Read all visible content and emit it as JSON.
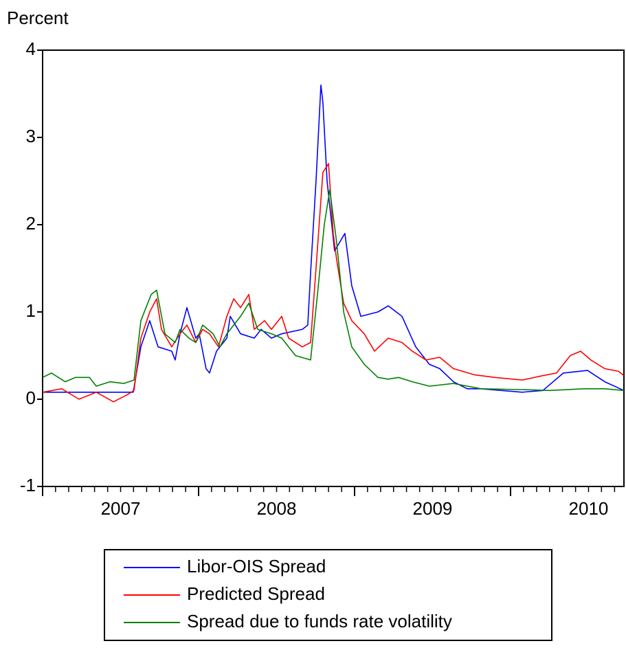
{
  "chart_data": {
    "type": "line",
    "ylabel": "Percent",
    "xlim": [
      2007,
      2010.727
    ],
    "ylim": [
      -1,
      4
    ],
    "yticks": [
      -1,
      0,
      1,
      2,
      3,
      4
    ],
    "xticks": [
      {
        "value": 2007.5,
        "label": "2007"
      },
      {
        "value": 2008.5,
        "label": "2008"
      },
      {
        "value": 2009.5,
        "label": "2009"
      },
      {
        "value": 2010.5,
        "label": "2010"
      }
    ],
    "x_minor_ticks": [
      2007,
      2007.083,
      2007.167,
      2007.25,
      2007.333,
      2007.417,
      2007.5,
      2007.583,
      2007.667,
      2007.75,
      2007.833,
      2007.917,
      2008,
      2008.083,
      2008.167,
      2008.25,
      2008.333,
      2008.417,
      2008.5,
      2008.583,
      2008.667,
      2008.75,
      2008.833,
      2008.917,
      2009,
      2009.083,
      2009.167,
      2009.25,
      2009.333,
      2009.417,
      2009.5,
      2009.583,
      2009.667,
      2009.75,
      2009.833,
      2009.917,
      2010,
      2010.083,
      2010.167,
      2010.25,
      2010.333,
      2010.417,
      2010.5,
      2010.583,
      2010.667
    ],
    "legend": "bottom",
    "series": [
      {
        "name": "Libor-OIS Spread",
        "color": "#0000ff",
        "x": [
          2007,
          2007.581,
          2007.63,
          2007.687,
          2007.74,
          2007.828,
          2007.85,
          2007.881,
          2007.925,
          2007.982,
          2008.004,
          2008.048,
          2008.07,
          2008.115,
          2008.181,
          2008.203,
          2008.269,
          2008.357,
          2008.401,
          2008.467,
          2008.533,
          2008.665,
          2008.7,
          2008.718,
          2008.753,
          2008.784,
          2008.797,
          2008.824,
          2008.872,
          2008.938,
          2008.982,
          2009.04,
          2009.15,
          2009.216,
          2009.304,
          2009.392,
          2009.48,
          2009.546,
          2009.634,
          2009.722,
          2009.811,
          2009.943,
          2010.075,
          2010.207,
          2010.339,
          2010.493,
          2010.604,
          2010.727
        ],
        "values": [
          0.08,
          0.08,
          0.6,
          0.9,
          0.6,
          0.55,
          0.45,
          0.75,
          1.05,
          0.7,
          0.75,
          0.35,
          0.3,
          0.55,
          0.7,
          0.95,
          0.75,
          0.7,
          0.8,
          0.7,
          0.75,
          0.8,
          0.85,
          1.45,
          2.5,
          3.6,
          3.4,
          2.5,
          1.7,
          1.9,
          1.3,
          0.95,
          1.0,
          1.07,
          0.95,
          0.6,
          0.4,
          0.35,
          0.2,
          0.12,
          0.12,
          0.1,
          0.08,
          0.1,
          0.3,
          0.33,
          0.2,
          0.1
        ]
      },
      {
        "name": "Predicted Spread",
        "color": "#ff0000",
        "x": [
          2007,
          2007.123,
          2007.233,
          2007.344,
          2007.454,
          2007.542,
          2007.586,
          2007.63,
          2007.687,
          2007.731,
          2007.762,
          2007.828,
          2007.881,
          2007.925,
          2007.982,
          2008.026,
          2008.07,
          2008.128,
          2008.181,
          2008.225,
          2008.269,
          2008.322,
          2008.357,
          2008.423,
          2008.467,
          2008.533,
          2008.577,
          2008.665,
          2008.718,
          2008.753,
          2008.797,
          2008.833,
          2008.863,
          2008.885,
          2008.93,
          2008.982,
          2009.062,
          2009.128,
          2009.216,
          2009.304,
          2009.37,
          2009.458,
          2009.546,
          2009.634,
          2009.767,
          2009.899,
          2010.075,
          2010.207,
          2010.295,
          2010.383,
          2010.449,
          2010.515,
          2010.604,
          2010.692,
          2010.727
        ],
        "values": [
          0.08,
          0.12,
          0.0,
          0.08,
          -0.03,
          0.05,
          0.1,
          0.7,
          1.0,
          1.15,
          0.8,
          0.6,
          0.75,
          0.85,
          0.65,
          0.8,
          0.75,
          0.6,
          0.95,
          1.15,
          1.05,
          1.2,
          0.8,
          0.9,
          0.8,
          0.95,
          0.7,
          0.6,
          0.65,
          1.5,
          2.6,
          2.7,
          1.9,
          1.6,
          1.1,
          0.9,
          0.75,
          0.55,
          0.7,
          0.65,
          0.55,
          0.45,
          0.48,
          0.35,
          0.28,
          0.25,
          0.22,
          0.27,
          0.3,
          0.5,
          0.55,
          0.45,
          0.35,
          0.32,
          0.27
        ]
      },
      {
        "name": "Spread due to funds rate volatility",
        "color": "#008000",
        "x": [
          2007,
          2007.057,
          2007.145,
          2007.211,
          2007.3,
          2007.344,
          2007.432,
          2007.52,
          2007.586,
          2007.63,
          2007.696,
          2007.731,
          2007.784,
          2007.85,
          2007.881,
          2007.938,
          2007.982,
          2008.026,
          2008.093,
          2008.137,
          2008.181,
          2008.225,
          2008.269,
          2008.322,
          2008.379,
          2008.467,
          2008.533,
          2008.621,
          2008.718,
          2008.762,
          2008.806,
          2008.841,
          2008.885,
          2008.93,
          2008.982,
          2009.062,
          2009.15,
          2009.216,
          2009.282,
          2009.37,
          2009.48,
          2009.634,
          2009.811,
          2010.075,
          2010.251,
          2010.471,
          2010.604,
          2010.727
        ],
        "values": [
          0.25,
          0.3,
          0.2,
          0.25,
          0.25,
          0.15,
          0.2,
          0.18,
          0.22,
          0.9,
          1.2,
          1.25,
          0.75,
          0.65,
          0.8,
          0.7,
          0.65,
          0.85,
          0.75,
          0.6,
          0.75,
          0.85,
          0.95,
          1.1,
          0.8,
          0.75,
          0.7,
          0.5,
          0.45,
          1.2,
          2.0,
          2.4,
          1.8,
          1.0,
          0.6,
          0.4,
          0.25,
          0.23,
          0.25,
          0.2,
          0.15,
          0.18,
          0.12,
          0.11,
          0.1,
          0.12,
          0.12,
          0.1
        ]
      }
    ]
  }
}
